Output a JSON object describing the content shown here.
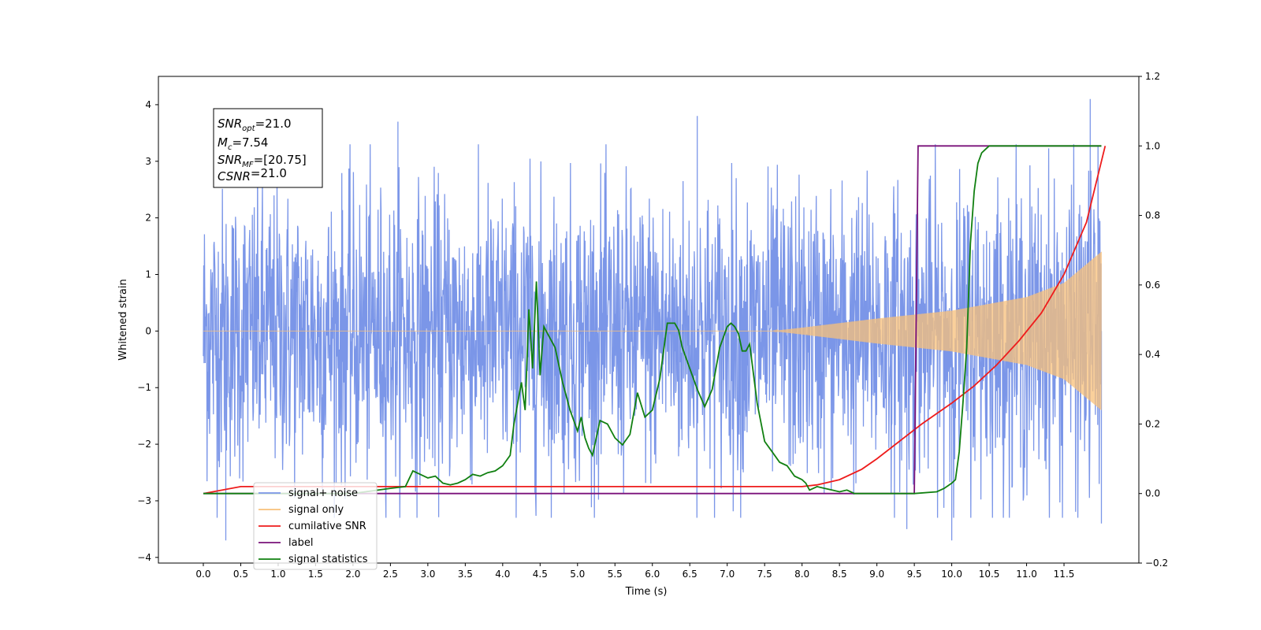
{
  "chart_data": {
    "type": "line",
    "xlabel": "Time (s)",
    "ylabel": "Whitened strain",
    "xlim": [
      -0.6,
      12.5
    ],
    "ylim": [
      -4.1,
      4.5
    ],
    "y2lim": [
      -0.2,
      1.2
    ],
    "x_ticks": [
      "0.0",
      "0.5",
      "1.0",
      "1.5",
      "2.0",
      "2.5",
      "3.0",
      "3.5",
      "4.0",
      "4.5",
      "5.0",
      "5.5",
      "6.0",
      "6.5",
      "7.0",
      "7.5",
      "8.0",
      "8.5",
      "9.0",
      "9.5",
      "10.0",
      "10.5",
      "11.0",
      "11.5"
    ],
    "y_ticks": [
      "4",
      "3",
      "2",
      "1",
      "0",
      "−1",
      "−2",
      "−3",
      "−4"
    ],
    "y2_ticks": [
      "1.2",
      "1.0",
      "0.8",
      "0.6",
      "0.4",
      "0.2",
      "0.0",
      "−0.2"
    ],
    "grid": false,
    "legend_position": "lower-left",
    "annotation": {
      "line1": {
        "sym": "SNR",
        "sub": "opt",
        "rest": "=21.0"
      },
      "line2": {
        "sym": "M",
        "sub": "c",
        "rest": "=7.54"
      },
      "line3": {
        "sym": "SNR",
        "sub": "MF",
        "rest": "=[20.75]"
      },
      "line4": {
        "sym": "CSNR",
        "sub": "",
        "rest": "=21.0"
      }
    },
    "series": [
      {
        "name": "signal+ noise",
        "color": "#7b96e8",
        "axis": "left",
        "x_range": [
          0,
          12.0
        ],
        "amplitude_envelope": [
          [
            0,
            2.3
          ],
          [
            2.0,
            2.3
          ],
          [
            9.5,
            2.3
          ],
          [
            11.5,
            2.5
          ],
          [
            12.0,
            2.7
          ]
        ],
        "peaks": [
          [
            0.3,
            -3.7
          ],
          [
            2.6,
            3.7
          ],
          [
            6.6,
            3.8
          ],
          [
            9.4,
            -3.5
          ],
          [
            10.0,
            -3.7
          ],
          [
            11.85,
            4.1
          ],
          [
            12.0,
            -3.4
          ]
        ]
      },
      {
        "name": "signal only",
        "color": "#f8c07a",
        "axis": "left",
        "x_range": [
          0,
          12.0
        ],
        "amplitude_envelope": [
          [
            0,
            0.0
          ],
          [
            7.6,
            0.0
          ],
          [
            8.0,
            0.06
          ],
          [
            9.0,
            0.22
          ],
          [
            10.0,
            0.36
          ],
          [
            11.0,
            0.6
          ],
          [
            11.5,
            0.85
          ],
          [
            12.0,
            1.4
          ]
        ]
      },
      {
        "name": "cumilative SNR",
        "color": "#ee1c1c",
        "axis": "right",
        "x": [
          0.0,
          0.5,
          1.0,
          2.0,
          3.0,
          4.0,
          5.0,
          6.0,
          7.0,
          8.0,
          8.2,
          8.5,
          8.8,
          9.0,
          9.3,
          9.6,
          10.0,
          10.3,
          10.6,
          10.9,
          11.2,
          11.5,
          11.8,
          12.05
        ],
        "y": [
          0.0,
          0.02,
          0.02,
          0.02,
          0.02,
          0.02,
          0.02,
          0.02,
          0.02,
          0.02,
          0.025,
          0.04,
          0.07,
          0.1,
          0.15,
          0.2,
          0.26,
          0.31,
          0.37,
          0.44,
          0.52,
          0.63,
          0.78,
          1.0
        ]
      },
      {
        "name": "label",
        "color": "#7a127a",
        "axis": "right",
        "x": [
          0.0,
          9.5,
          9.55,
          12.0
        ],
        "y": [
          0.0,
          0.0,
          1.0,
          1.0
        ]
      },
      {
        "name": "signal statistics",
        "color": "#118011",
        "axis": "right",
        "x": [
          0.0,
          1.0,
          2.0,
          2.5,
          2.7,
          2.8,
          2.9,
          3.0,
          3.1,
          3.2,
          3.3,
          3.4,
          3.5,
          3.6,
          3.7,
          3.8,
          3.9,
          4.0,
          4.1,
          4.15,
          4.25,
          4.3,
          4.35,
          4.4,
          4.45,
          4.5,
          4.55,
          4.6,
          4.7,
          4.8,
          4.9,
          5.0,
          5.05,
          5.1,
          5.15,
          5.2,
          5.3,
          5.4,
          5.5,
          5.6,
          5.7,
          5.8,
          5.9,
          6.0,
          6.1,
          6.2,
          6.3,
          6.35,
          6.4,
          6.5,
          6.6,
          6.7,
          6.8,
          6.9,
          7.0,
          7.05,
          7.1,
          7.15,
          7.2,
          7.25,
          7.3,
          7.4,
          7.5,
          7.6,
          7.7,
          7.8,
          7.9,
          8.0,
          8.05,
          8.1,
          8.2,
          8.3,
          8.4,
          8.5,
          8.6,
          8.7,
          9.0,
          9.5,
          9.8,
          9.9,
          10.0,
          10.05,
          10.1,
          10.15,
          10.2,
          10.25,
          10.3,
          10.35,
          10.4,
          10.45,
          10.5,
          10.6,
          10.7,
          11.0,
          12.0
        ],
        "y": [
          0.0,
          0.0,
          0.0,
          0.015,
          0.02,
          0.065,
          0.055,
          0.045,
          0.05,
          0.03,
          0.025,
          0.03,
          0.04,
          0.055,
          0.05,
          0.06,
          0.065,
          0.08,
          0.11,
          0.2,
          0.32,
          0.24,
          0.53,
          0.36,
          0.61,
          0.34,
          0.48,
          0.46,
          0.42,
          0.32,
          0.24,
          0.18,
          0.22,
          0.16,
          0.13,
          0.11,
          0.21,
          0.2,
          0.16,
          0.14,
          0.17,
          0.29,
          0.22,
          0.24,
          0.33,
          0.49,
          0.49,
          0.47,
          0.42,
          0.36,
          0.3,
          0.25,
          0.3,
          0.42,
          0.48,
          0.49,
          0.48,
          0.46,
          0.41,
          0.41,
          0.43,
          0.26,
          0.15,
          0.12,
          0.09,
          0.08,
          0.05,
          0.04,
          0.03,
          0.01,
          0.02,
          0.015,
          0.01,
          0.005,
          0.01,
          0.0,
          0.0,
          0.0,
          0.005,
          0.015,
          0.03,
          0.04,
          0.12,
          0.26,
          0.42,
          0.72,
          0.87,
          0.95,
          0.98,
          0.99,
          1.0,
          1.0,
          1.0,
          1.0,
          1.0
        ]
      }
    ]
  }
}
